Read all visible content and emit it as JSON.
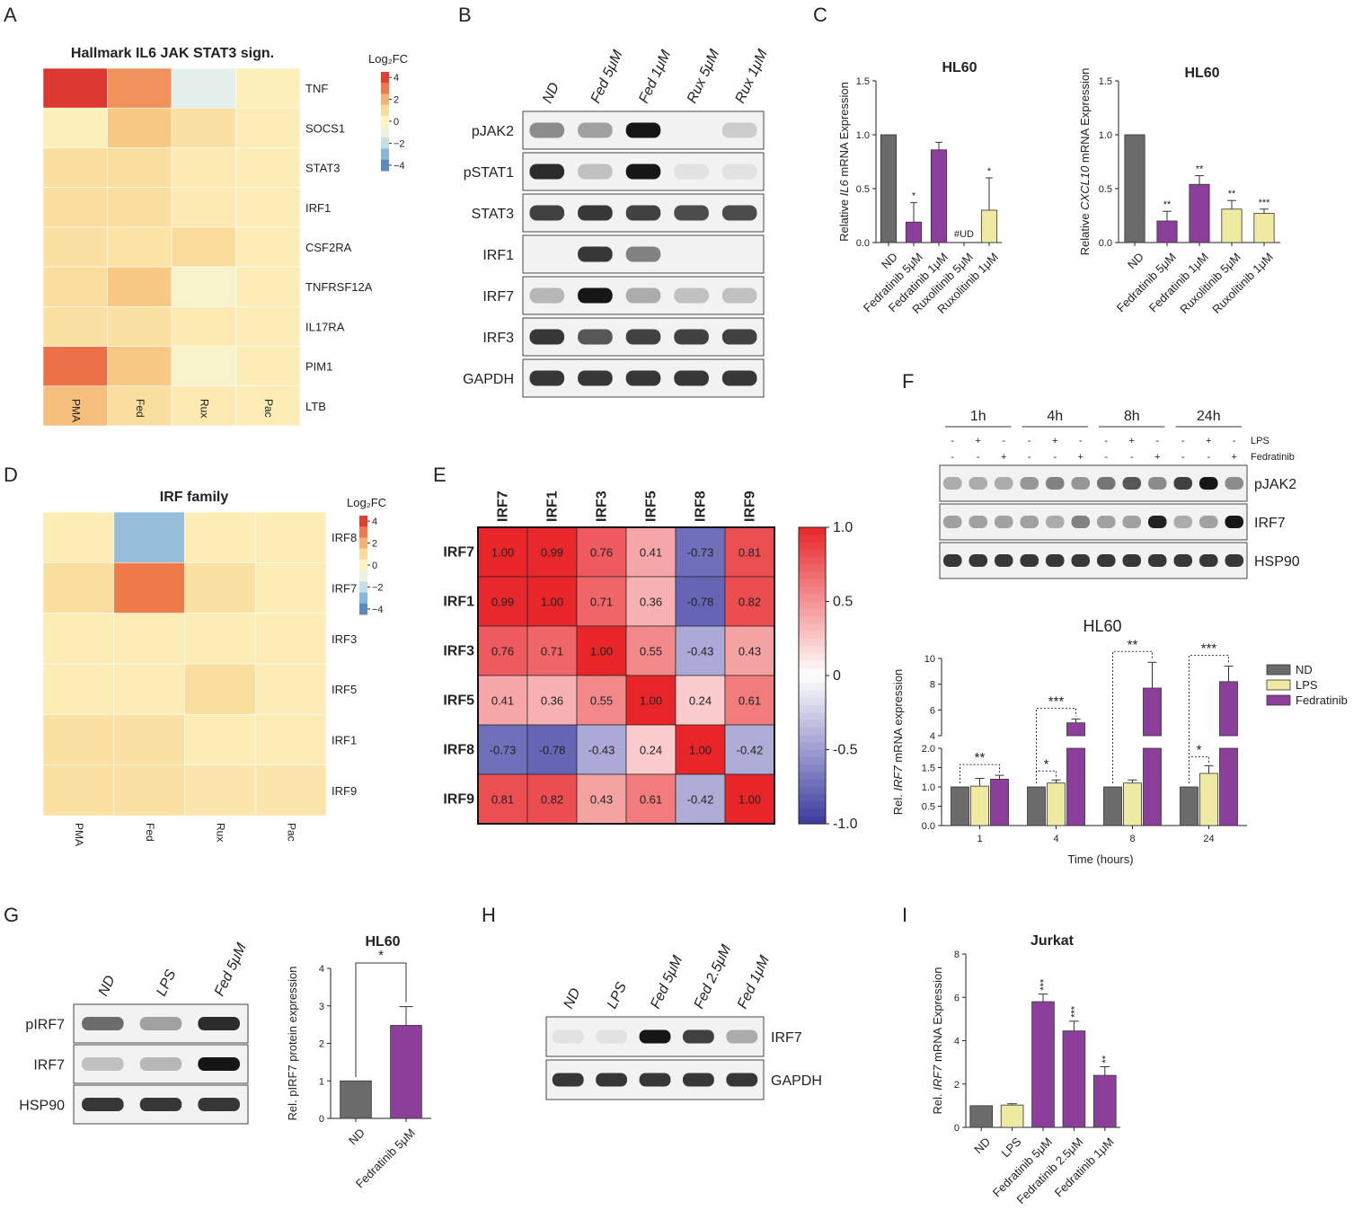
{
  "panel_letters": [
    "A",
    "B",
    "C",
    "D",
    "E",
    "F",
    "G",
    "H",
    "I"
  ],
  "colors": {
    "grey": "#6b6b6b",
    "purple": "#8c3f9a",
    "yellow": "#eeeaa2",
    "heat_scale": [
      "#4574b0",
      "#8ab6d8",
      "#e3f0ef",
      "#fdf4c2",
      "#f8cf87",
      "#ef7b4b",
      "#d7262a"
    ],
    "corr_scale": [
      "#3b3aa0",
      "#ffffff",
      "#e8262a"
    ]
  },
  "panel_a": {
    "title": "Hallmark IL6 JAK STAT3 sign.",
    "legend_title": "Log₂FC",
    "legend_ticks": [
      "4",
      "2",
      "0",
      "−2",
      "−4"
    ],
    "columns": [
      "PMA",
      "Fed",
      "Rux",
      "Pac"
    ],
    "genes": [
      "TNF",
      "SOCS1",
      "STAT3",
      "IRF1",
      "CSF2RA",
      "TNFRSF12A",
      "IL17RA",
      "PIM1",
      "LTB"
    ],
    "values": [
      [
        4.2,
        2.6,
        -1.4,
        0.2
      ],
      [
        0.2,
        1.6,
        0.8,
        0.3
      ],
      [
        0.9,
        0.9,
        0.4,
        0.3
      ],
      [
        0.9,
        0.9,
        0.4,
        0.3
      ],
      [
        0.8,
        0.7,
        1.0,
        0.3
      ],
      [
        0.9,
        1.6,
        -0.3,
        0.3
      ],
      [
        0.8,
        0.8,
        0.4,
        0.3
      ],
      [
        3.2,
        1.6,
        -0.3,
        0.3
      ],
      [
        1.8,
        0.9,
        0.4,
        0.3
      ]
    ]
  },
  "panel_b": {
    "lanes": [
      "ND",
      "Fed 5μM",
      "Fed 1μM",
      "Rux 5μM",
      "Rux 1μM"
    ],
    "rows": [
      {
        "label": "pJAK2",
        "bands": [
          0.45,
          0.35,
          1.0,
          0.0,
          0.15
        ]
      },
      {
        "label": "pSTAT1",
        "bands": [
          0.9,
          0.2,
          1.0,
          0.05,
          0.05
        ]
      },
      {
        "label": "STAT3",
        "bands": [
          0.8,
          0.85,
          0.8,
          0.75,
          0.75
        ]
      },
      {
        "label": "IRF1",
        "bands": [
          0.0,
          0.85,
          0.5,
          0.0,
          0.0
        ]
      },
      {
        "label": "IRF7",
        "bands": [
          0.25,
          1.0,
          0.3,
          0.2,
          0.2
        ]
      },
      {
        "label": "IRF3",
        "bands": [
          0.85,
          0.7,
          0.8,
          0.8,
          0.8
        ]
      },
      {
        "label": "GAPDH",
        "bands": [
          0.85,
          0.85,
          0.85,
          0.85,
          0.85
        ]
      }
    ]
  },
  "panel_d": {
    "title": "IRF family",
    "legend_title": "Log₂FC",
    "legend_ticks": [
      "4",
      "2",
      "0",
      "−2",
      "−4"
    ],
    "columns": [
      "PMA",
      "Fed",
      "Rux",
      "Pac"
    ],
    "genes": [
      "IRF8",
      "IRF7",
      "IRF3",
      "IRF5",
      "IRF1",
      "IRF9"
    ],
    "values": [
      [
        0.3,
        -2.8,
        0.3,
        0.3
      ],
      [
        0.9,
        3.0,
        0.8,
        0.3
      ],
      [
        0.3,
        0.3,
        0.3,
        0.3
      ],
      [
        0.3,
        0.3,
        0.9,
        0.3
      ],
      [
        0.8,
        0.8,
        0.3,
        0.3
      ],
      [
        0.8,
        0.8,
        0.6,
        0.6
      ]
    ]
  },
  "panel_e": {
    "labels": [
      "IRF7",
      "IRF1",
      "IRF3",
      "IRF5",
      "IRF8",
      "IRF9"
    ],
    "matrix": [
      [
        "1.00",
        "0.99",
        "0.76",
        "0.41",
        "-0.73",
        "0.81"
      ],
      [
        "0.99",
        "1.00",
        "0.71",
        "0.36",
        "-0.78",
        "0.82"
      ],
      [
        "0.76",
        "0.71",
        "1.00",
        "0.55",
        "-0.43",
        "0.43"
      ],
      [
        "0.41",
        "0.36",
        "0.55",
        "1.00",
        "0.24",
        "0.61"
      ],
      [
        "-0.73",
        "-0.78",
        "-0.43",
        "0.24",
        "1.00",
        "-0.42"
      ],
      [
        "0.81",
        "0.82",
        "0.43",
        "0.61",
        "-0.42",
        "1.00"
      ]
    ],
    "colorbar_ticks": [
      "1.0",
      "0.5",
      "0",
      "-0.5",
      "-1.0"
    ]
  },
  "panel_f_blot": {
    "times": [
      "1h",
      "4h",
      "8h",
      "24h"
    ],
    "lps_row": [
      "-",
      "+",
      "-",
      "-",
      "+",
      "-",
      "-",
      "+",
      "-",
      "-",
      "+",
      "-"
    ],
    "fed_row": [
      "-",
      "-",
      "+",
      "-",
      "-",
      "+",
      "-",
      "-",
      "+",
      "-",
      "-",
      "+"
    ],
    "lps_label": "LPS",
    "fed_label": "Fedratinib",
    "rows": [
      {
        "label": "pJAK2",
        "bands": [
          0.3,
          0.3,
          0.3,
          0.4,
          0.5,
          0.4,
          0.55,
          0.7,
          0.45,
          0.8,
          1.0,
          0.45
        ]
      },
      {
        "label": "IRF7",
        "bands": [
          0.35,
          0.35,
          0.35,
          0.35,
          0.3,
          0.5,
          0.35,
          0.35,
          0.95,
          0.3,
          0.35,
          1.0
        ]
      },
      {
        "label": "HSP90",
        "bands": [
          0.85,
          0.85,
          0.85,
          0.85,
          0.85,
          0.85,
          0.85,
          0.85,
          0.85,
          0.85,
          0.85,
          0.85
        ]
      }
    ]
  },
  "panel_g_blot": {
    "lanes": [
      "ND",
      "LPS",
      "Fed 5μM"
    ],
    "rows": [
      {
        "label": "pIRF7",
        "bands": [
          0.6,
          0.35,
          0.9
        ]
      },
      {
        "label": "IRF7",
        "bands": [
          0.2,
          0.25,
          1.0
        ]
      },
      {
        "label": "HSP90",
        "bands": [
          0.85,
          0.85,
          0.85
        ]
      }
    ]
  },
  "panel_h_blot": {
    "lanes": [
      "ND",
      "LPS",
      "Fed 5μM",
      "Fed 2.5μM",
      "Fed 1μM"
    ],
    "rows": [
      {
        "label": "IRF7",
        "bands": [
          0.05,
          0.05,
          1.0,
          0.8,
          0.3
        ]
      },
      {
        "label": "GAPDH",
        "bands": [
          0.85,
          0.85,
          0.85,
          0.85,
          0.85
        ]
      }
    ]
  },
  "chart_data": [
    {
      "panel": "C-left",
      "type": "bar",
      "title": "HL60",
      "ylabel_parts": [
        "Relative ",
        "IL6",
        " mRNA Expression"
      ],
      "categories": [
        "ND",
        "Fedratinib 5μM",
        "Fedratinib 1μM",
        "Ruxolitinib 5μM",
        "Ruxolitinib 1μM"
      ],
      "values": [
        1.0,
        0.19,
        0.86,
        0.0,
        0.3
      ],
      "errors": [
        0,
        0.18,
        0.07,
        0,
        0.3
      ],
      "sig": [
        "",
        "*",
        "",
        "",
        "*"
      ],
      "undetected_label": "#UD",
      "colors": [
        "#6b6b6b",
        "#8c3f9a",
        "#8c3f9a",
        "#eeeaa2",
        "#eeeaa2"
      ],
      "ylim": [
        0,
        1.5
      ],
      "yticks": [
        "0.0",
        "0.5",
        "1.0",
        "1.5"
      ]
    },
    {
      "panel": "C-right",
      "type": "bar",
      "title": "HL60",
      "ylabel_parts": [
        "Relative ",
        "CXCL10",
        " mRNA Expression"
      ],
      "categories": [
        "ND",
        "Fedratinib 5μM",
        "Fedratinib 1μM",
        "Ruxolitinib 5μM",
        "Ruxolitinib 1μM"
      ],
      "values": [
        1.0,
        0.2,
        0.54,
        0.31,
        0.27
      ],
      "errors": [
        0,
        0.09,
        0.08,
        0.08,
        0.04
      ],
      "sig": [
        "",
        "**",
        "**",
        "**",
        "***"
      ],
      "colors": [
        "#6b6b6b",
        "#8c3f9a",
        "#8c3f9a",
        "#eeeaa2",
        "#eeeaa2"
      ],
      "ylim": [
        0,
        1.5
      ],
      "yticks": [
        "0.0",
        "0.5",
        "1.0",
        "1.5"
      ]
    },
    {
      "panel": "F",
      "type": "bar",
      "title": "HL60",
      "ylabel_parts": [
        "Rel. ",
        "IRF7",
        " mRNA expression"
      ],
      "xlabel": "Time (hours)",
      "categories": [
        "1",
        "4",
        "8",
        "24"
      ],
      "series": [
        {
          "name": "ND",
          "values": [
            1.0,
            1.0,
            1.0,
            1.0
          ],
          "errors": [
            0,
            0,
            0,
            0
          ]
        },
        {
          "name": "LPS",
          "values": [
            1.02,
            1.1,
            1.1,
            1.35
          ],
          "errors": [
            0.2,
            0.08,
            0.08,
            0.2
          ]
        },
        {
          "name": "Fedratinib",
          "values": [
            1.2,
            5.0,
            7.7,
            8.2
          ],
          "errors": [
            0.1,
            0.3,
            2.0,
            1.2
          ]
        }
      ],
      "brackets": [
        {
          "group": 0,
          "to": 2,
          "label": "**"
        },
        {
          "group": 1,
          "to": 1,
          "label": "*"
        },
        {
          "group": 1,
          "to": 2,
          "label": "***"
        },
        {
          "group": 2,
          "to": 2,
          "label": "**"
        },
        {
          "group": 3,
          "to": 1,
          "label": "*"
        },
        {
          "group": 3,
          "to": 2,
          "label": "***"
        }
      ],
      "yticks_low": [
        "0.0",
        "0.5",
        "1.0",
        "1.5",
        "2.0"
      ],
      "yticks_high": [
        "4",
        "6",
        "8",
        "10"
      ],
      "ylim": [
        0,
        10
      ],
      "axis_break": [
        2,
        4
      ]
    },
    {
      "panel": "G",
      "type": "bar",
      "title": "HL60",
      "ylabel": "Rel. pIRF7 protein expression",
      "categories": [
        "ND",
        "Fedratinib 5μM"
      ],
      "values": [
        1.0,
        2.48
      ],
      "errors": [
        0,
        0.5
      ],
      "bracket_label": "*",
      "colors": [
        "#6b6b6b",
        "#8c3f9a"
      ],
      "ylim": [
        0,
        4
      ],
      "yticks": [
        "0",
        "1",
        "2",
        "3",
        "4"
      ]
    },
    {
      "panel": "I",
      "type": "bar",
      "title": "Jurkat",
      "ylabel_parts": [
        "Rel. ",
        "IRF7",
        " mRNA Expression"
      ],
      "categories": [
        "ND",
        "LPS",
        "Fedratinib 5μM",
        "Fedratinib 2.5μM",
        "Fedratinib 1μM"
      ],
      "values": [
        1.0,
        1.03,
        5.8,
        4.45,
        2.4
      ],
      "errors": [
        0,
        0.06,
        0.35,
        0.45,
        0.4
      ],
      "sig": [
        "",
        "",
        "***",
        "***",
        "**"
      ],
      "colors": [
        "#6b6b6b",
        "#eeeaa2",
        "#8c3f9a",
        "#8c3f9a",
        "#8c3f9a"
      ],
      "ylim": [
        0,
        8
      ],
      "yticks": [
        "0",
        "2",
        "4",
        "6",
        "8"
      ]
    }
  ]
}
